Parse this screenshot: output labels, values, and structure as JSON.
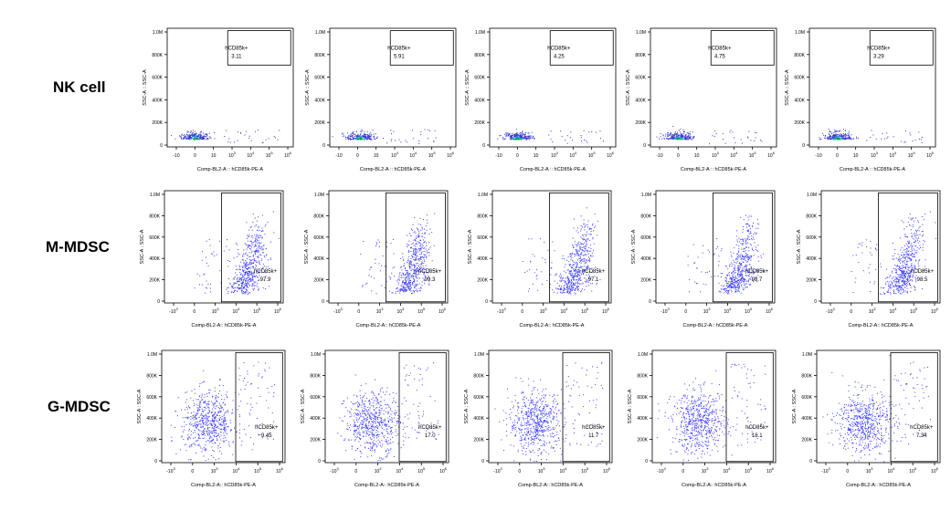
{
  "chart_data": {
    "type": "scatter",
    "rows": [
      {
        "label": "NK cell",
        "axes": {
          "ylabel": "SSC-A :: SSC-A",
          "xlabel": "Comp-BL2-A :: hCD85k-PE-A",
          "yticks": [
            "0",
            "200K",
            "400K",
            "600K",
            "800K",
            "1.0M"
          ],
          "xticks": [
            "-10",
            "0",
            "10",
            "10",
            "10",
            "10",
            "10"
          ],
          "xexp": [
            "",
            "",
            "",
            "3",
            "4",
            "5",
            "6"
          ]
        },
        "panels": [
          {
            "gate_name": "hCD85k+",
            "percent": "3.11",
            "value": 3.11
          },
          {
            "gate_name": "hCD85k+",
            "percent": "5.91",
            "value": 5.91
          },
          {
            "gate_name": "hCD85k+",
            "percent": "4.25",
            "value": 4.25
          },
          {
            "gate_name": "hCD85k+",
            "percent": "4.75",
            "value": 4.75
          },
          {
            "gate_name": "hCD85k+",
            "percent": "3.29",
            "value": 3.29
          }
        ]
      },
      {
        "label": "M-MDSC",
        "axes": {
          "ylabel": "SSC-A : SSC-A",
          "xlabel": "Comp-BL2-A:: hCD85k-PE-A",
          "yticks": [
            "0",
            "200K",
            "400K",
            "600K",
            "800K",
            "1.0M"
          ],
          "xticks": [
            "-10",
            "0",
            "10",
            "10",
            "10",
            "10"
          ],
          "xexp": [
            "3",
            "",
            "3",
            "4",
            "5",
            "6"
          ]
        },
        "panels": [
          {
            "gate_name": "hCD85k+",
            "percent": "97.9",
            "value": 97.9
          },
          {
            "gate_name": "hCD85k+",
            "percent": "99.3",
            "value": 99.3
          },
          {
            "gate_name": "hCD85k+",
            "percent": "97.1",
            "value": 97.1
          },
          {
            "gate_name": "hCD85k+",
            "percent": "98.7",
            "value": 98.7
          },
          {
            "gate_name": "hCD85k+",
            "percent": "98.5",
            "value": 98.5
          }
        ]
      },
      {
        "label": "G-MDSC",
        "axes": {
          "ylabel": "SSC-A : SSC-A",
          "xlabel": "Comp-BL2-A:: hCD85k-PE-A",
          "yticks": [
            "0",
            "200K",
            "400K",
            "600K",
            "800K",
            "1.0M"
          ],
          "xticks": [
            "-10",
            "0",
            "10",
            "10",
            "10",
            "10"
          ],
          "xexp": [
            "3",
            "",
            "3",
            "4",
            "5",
            "6"
          ]
        },
        "panels": [
          {
            "gate_name": "hCD85k+",
            "percent": "9.45",
            "value": 9.45
          },
          {
            "gate_name": "hCD85k+",
            "percent": "17.0",
            "value": 17.0
          },
          {
            "gate_name": "hCD85k+",
            "percent": "11.7",
            "value": 11.7
          },
          {
            "gate_name": "hCD85k+",
            "percent": "18.1",
            "value": 18.1
          },
          {
            "gate_name": "hCD85k+",
            "percent": "7.34",
            "value": 7.34
          }
        ]
      }
    ]
  }
}
